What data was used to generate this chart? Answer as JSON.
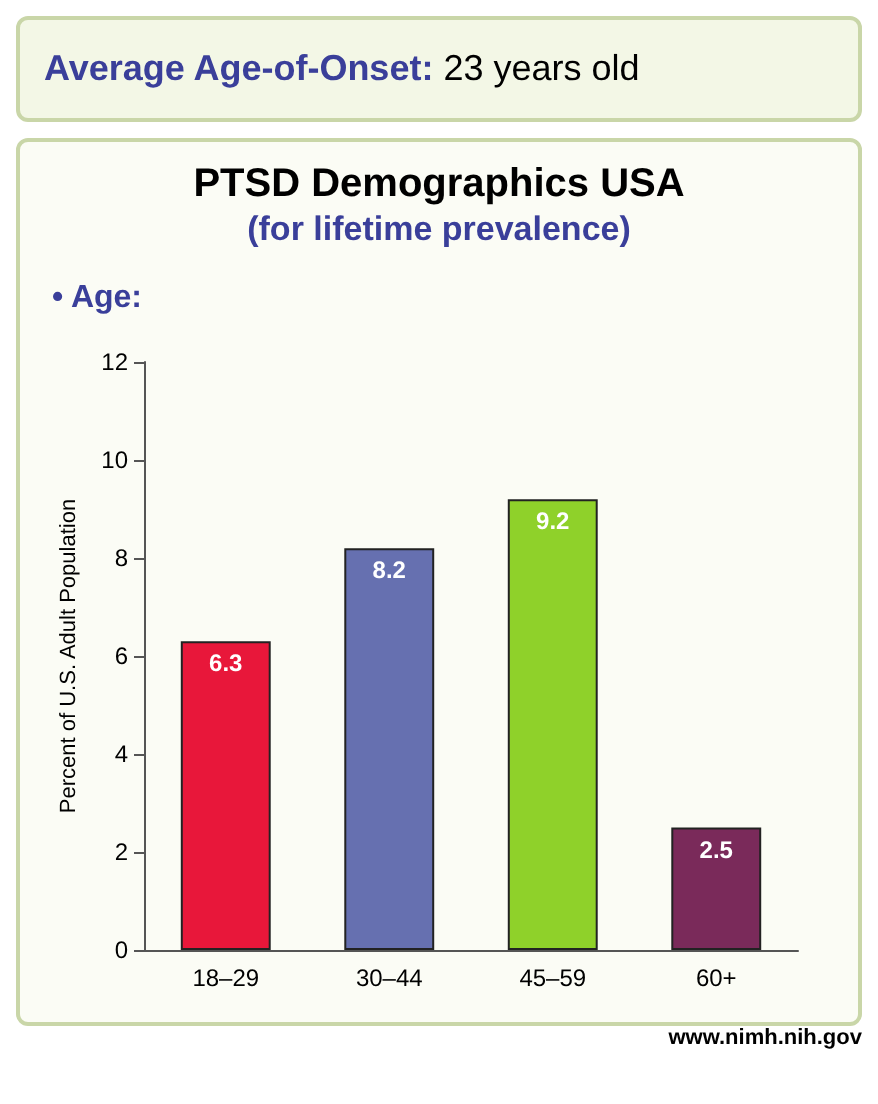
{
  "chart_data": {
    "type": "bar",
    "title": "PTSD Demographics USA",
    "subtitle": "(for lifetime prevalence)",
    "ylabel": "Percent of U.S. Adult Population",
    "annotations": [
      "Average Age-of-Onset: 23 years old",
      "• Age:",
      "www.nimh.nih.gov"
    ],
    "categories": [
      "18–29",
      "30–44",
      "45–59",
      "60+"
    ],
    "values": [
      6.3,
      8.2,
      9.2,
      2.5
    ],
    "colors": [
      "#e8173a",
      "#6670b0",
      "#8fd12a",
      "#7a2a5a"
    ],
    "ylim": [
      0,
      12
    ],
    "yticks": [
      0,
      2,
      4,
      6,
      8,
      10,
      12
    ],
    "grid": false,
    "data_labels": true
  }
}
